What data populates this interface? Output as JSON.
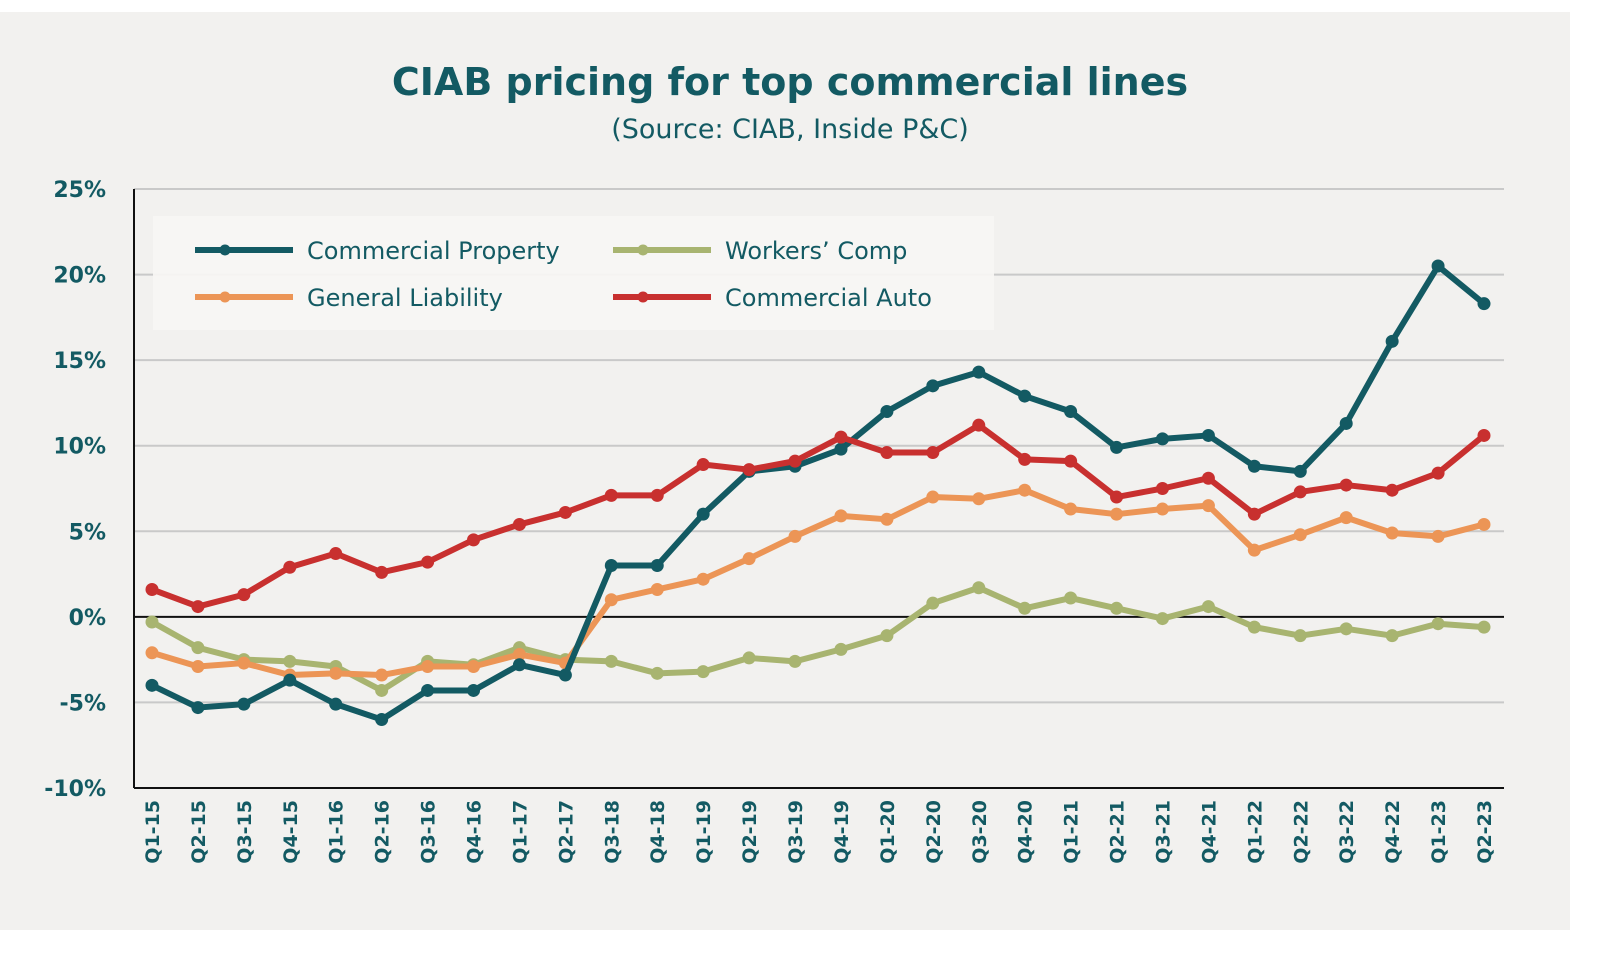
{
  "chart_data": {
    "type": "line",
    "title": "CIAB pricing for top commercial lines",
    "subtitle": "(Source: CIAB, Inside P&C)",
    "xlabel": "",
    "ylabel": "",
    "ylim": [
      -10,
      25
    ],
    "yticks": [
      "25%",
      "20%",
      "15%",
      "10%",
      "5%",
      "0%",
      "-5%",
      "-10%"
    ],
    "ytick_values": [
      25,
      20,
      15,
      10,
      5,
      0,
      -5,
      -10
    ],
    "grid": true,
    "legend_placement": "top-left",
    "categories": [
      "Q1-15",
      "Q2-15",
      "Q3-15",
      "Q4-15",
      "Q1-16",
      "Q2-16",
      "Q3-16",
      "Q4-16",
      "Q1-17",
      "Q2-17",
      "Q3-18",
      "Q4-18",
      "Q1-19",
      "Q2-19",
      "Q3-19",
      "Q4-19",
      "Q1-20",
      "Q2-20",
      "Q3-20",
      "Q4-20",
      "Q1-21",
      "Q2-21",
      "Q3-21",
      "Q4-21",
      "Q1-22",
      "Q2-22",
      "Q3-22",
      "Q4-22",
      "Q1-23",
      "Q2-23"
    ],
    "series": [
      {
        "name": "Commercial Property",
        "color": "#135a63",
        "values": [
          -4.0,
          -5.3,
          -5.1,
          -3.7,
          -5.1,
          -6.0,
          -4.3,
          -4.3,
          -2.8,
          -3.4,
          3.0,
          3.0,
          6.0,
          8.5,
          8.8,
          9.8,
          12.0,
          13.5,
          14.3,
          12.9,
          12.0,
          9.9,
          10.4,
          10.6,
          8.8,
          8.5,
          11.3,
          16.1,
          20.5,
          18.3
        ]
      },
      {
        "name": "Workers’ Comp",
        "color": "#a8b470",
        "values": [
          -0.3,
          -1.8,
          -2.5,
          -2.6,
          -2.9,
          -4.3,
          -2.6,
          -2.8,
          -1.8,
          -2.5,
          -2.6,
          -3.3,
          -3.2,
          -2.4,
          -2.6,
          -1.9,
          -1.1,
          0.8,
          1.7,
          0.5,
          1.1,
          0.5,
          -0.1,
          0.6,
          -0.6,
          -1.1,
          -0.7,
          -1.1,
          -0.4,
          -0.6
        ]
      },
      {
        "name": "General Liability",
        "color": "#ec9556",
        "values": [
          -2.1,
          -2.9,
          -2.7,
          -3.4,
          -3.3,
          -3.4,
          -2.9,
          -2.9,
          -2.2,
          -2.7,
          1.0,
          1.6,
          2.2,
          3.4,
          4.7,
          5.9,
          5.7,
          7.0,
          6.9,
          7.4,
          6.3,
          6.0,
          6.3,
          6.5,
          3.9,
          4.8,
          5.8,
          4.9,
          4.7,
          5.4
        ]
      },
      {
        "name": "Commercial Auto",
        "color": "#c8302f",
        "values": [
          1.6,
          0.6,
          1.3,
          2.9,
          3.7,
          2.6,
          3.2,
          4.5,
          5.4,
          6.1,
          7.1,
          7.1,
          8.9,
          8.6,
          9.1,
          10.5,
          9.6,
          9.6,
          11.2,
          9.2,
          9.1,
          7.0,
          7.5,
          8.1,
          6.0,
          7.3,
          7.7,
          7.4,
          8.4,
          10.6
        ]
      }
    ],
    "legend_order": [
      0,
      1,
      2,
      3
    ]
  }
}
